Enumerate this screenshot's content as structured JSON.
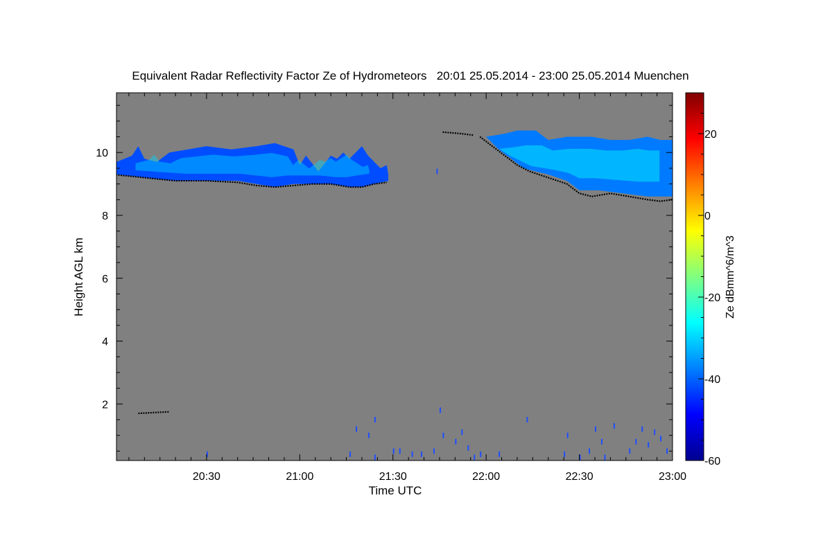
{
  "chart_data": {
    "type": "heatmap",
    "title": "Equivalent Radar Reflectivity Factor Ze of Hydrometeors   20:01 25.05.2014 - 23:00 25.05.2014 Muenchen",
    "xlabel": "Time UTC",
    "ylabel": "Height AGL km",
    "x_unit": "minutes after 20:00 UTC",
    "xlim": [
      1,
      180
    ],
    "ylim": [
      0.2,
      11.9
    ],
    "x_ticks": [
      {
        "v": 30,
        "label": "20:30"
      },
      {
        "v": 60,
        "label": "21:00"
      },
      {
        "v": 90,
        "label": "21:30"
      },
      {
        "v": 120,
        "label": "22:00"
      },
      {
        "v": 150,
        "label": "22:30"
      },
      {
        "v": 180,
        "label": "23:00"
      }
    ],
    "y_ticks": [
      {
        "v": 2,
        "label": "2"
      },
      {
        "v": 4,
        "label": "4"
      },
      {
        "v": 6,
        "label": "6"
      },
      {
        "v": 8,
        "label": "8"
      },
      {
        "v": 10,
        "label": "10"
      }
    ],
    "background_color": "#808080",
    "colorbar": {
      "label": "Ze dBmm^6/m^3",
      "range": [
        -60,
        30
      ],
      "ticks": [
        {
          "v": 20,
          "label": "20"
        },
        {
          "v": 0,
          "label": "0"
        },
        {
          "v": -20,
          "label": "-20"
        },
        {
          "v": -40,
          "label": "-40"
        },
        {
          "v": -60,
          "label": "-60"
        }
      ],
      "colormap": [
        "#00008f",
        "#0000ff",
        "#0080ff",
        "#00ffff",
        "#80ff80",
        "#ffff00",
        "#ff8000",
        "#ff0000",
        "#800000"
      ]
    },
    "cloud_layers": [
      {
        "name": "cirrus-layer-1",
        "ze_dbz": -42,
        "top": [
          [
            1,
            9.7
          ],
          [
            6,
            9.9
          ],
          [
            8,
            10.2
          ],
          [
            10,
            9.8
          ],
          [
            14,
            9.7
          ],
          [
            18,
            10.0
          ],
          [
            24,
            10.1
          ],
          [
            30,
            10.2
          ],
          [
            38,
            10.1
          ],
          [
            46,
            10.2
          ],
          [
            52,
            10.3
          ],
          [
            58,
            10.1
          ],
          [
            60,
            9.6
          ],
          [
            62,
            9.9
          ],
          [
            66,
            9.4
          ],
          [
            70,
            9.9
          ],
          [
            72,
            9.8
          ],
          [
            74,
            10.0
          ],
          [
            76,
            9.8
          ],
          [
            78,
            10.0
          ],
          [
            80,
            10.2
          ],
          [
            82,
            9.9
          ],
          [
            84,
            9.7
          ],
          [
            86,
            9.5
          ],
          [
            88,
            9.6
          ],
          [
            88.5,
            9.3
          ]
        ],
        "base": [
          [
            1,
            9.3
          ],
          [
            10,
            9.2
          ],
          [
            20,
            9.1
          ],
          [
            30,
            9.1
          ],
          [
            40,
            9.1
          ],
          [
            46,
            9.0
          ],
          [
            52,
            8.9
          ],
          [
            58,
            9.0
          ],
          [
            64,
            9.0
          ],
          [
            70,
            9.0
          ],
          [
            76,
            8.9
          ],
          [
            80,
            8.9
          ],
          [
            84,
            9.0
          ],
          [
            88.5,
            9.1
          ]
        ]
      },
      {
        "name": "cirrus-layer-2",
        "ze_dbz": -38,
        "top": [
          [
            120,
            10.5
          ],
          [
            126,
            10.6
          ],
          [
            130,
            10.7
          ],
          [
            136,
            10.7
          ],
          [
            140,
            10.4
          ],
          [
            146,
            10.5
          ],
          [
            154,
            10.5
          ],
          [
            160,
            10.4
          ],
          [
            166,
            10.4
          ],
          [
            172,
            10.5
          ],
          [
            176,
            10.4
          ],
          [
            180,
            10.4
          ]
        ],
        "base": [
          [
            120,
            10.5
          ],
          [
            124,
            10.1
          ],
          [
            128,
            9.8
          ],
          [
            132,
            9.5
          ],
          [
            140,
            9.3
          ],
          [
            146,
            9.1
          ],
          [
            150,
            8.8
          ],
          [
            156,
            8.8
          ],
          [
            164,
            8.7
          ],
          [
            172,
            8.6
          ],
          [
            180,
            8.6
          ]
        ]
      }
    ],
    "detection_lines": [
      [
        [
          0,
          9.3
        ],
        [
          10,
          9.2
        ],
        [
          20,
          9.1
        ],
        [
          30,
          9.1
        ],
        [
          40,
          9.05
        ],
        [
          46,
          8.95
        ],
        [
          52,
          8.9
        ],
        [
          58,
          8.95
        ],
        [
          64,
          9.0
        ],
        [
          70,
          9.0
        ],
        [
          76,
          8.9
        ],
        [
          80,
          8.9
        ],
        [
          84,
          9.0
        ],
        [
          88,
          9.05
        ]
      ],
      [
        [
          106,
          10.65
        ],
        [
          112,
          10.6
        ],
        [
          116,
          10.55
        ]
      ],
      [
        [
          118,
          10.5
        ],
        [
          122,
          10.2
        ],
        [
          126,
          9.9
        ],
        [
          130,
          9.6
        ],
        [
          134,
          9.4
        ],
        [
          140,
          9.2
        ],
        [
          146,
          9.0
        ],
        [
          150,
          8.7
        ],
        [
          154,
          8.6
        ],
        [
          160,
          8.7
        ],
        [
          166,
          8.6
        ],
        [
          172,
          8.5
        ],
        [
          176,
          8.45
        ],
        [
          180,
          8.5
        ]
      ],
      [
        [
          8,
          1.7
        ],
        [
          18,
          1.75
        ]
      ]
    ],
    "noise_pixels": [
      [
        76,
        0.4
      ],
      [
        78,
        1.2
      ],
      [
        82,
        1.0
      ],
      [
        84,
        1.5
      ],
      [
        84,
        0.3
      ],
      [
        90,
        0.5
      ],
      [
        92,
        0.5
      ],
      [
        96,
        0.4
      ],
      [
        99,
        0.4
      ],
      [
        103,
        0.5
      ],
      [
        106,
        1.0
      ],
      [
        110,
        0.8
      ],
      [
        112,
        1.1
      ],
      [
        114,
        0.6
      ],
      [
        116,
        0.3
      ],
      [
        118,
        0.4
      ],
      [
        124,
        0.4
      ],
      [
        133,
        1.5
      ],
      [
        145,
        0.4
      ],
      [
        146,
        1.0
      ],
      [
        150,
        0.3
      ],
      [
        153,
        0.5
      ],
      [
        155,
        1.2
      ],
      [
        157,
        0.8
      ],
      [
        158,
        0.3
      ],
      [
        161,
        1.3
      ],
      [
        166,
        0.5
      ],
      [
        168,
        0.8
      ],
      [
        170,
        1.2
      ],
      [
        172,
        0.7
      ],
      [
        174,
        1.1
      ],
      [
        176,
        0.9
      ],
      [
        178,
        0.5
      ],
      [
        180,
        0.4
      ],
      [
        30,
        0.4
      ],
      [
        105,
        1.8
      ],
      [
        104,
        9.4
      ]
    ]
  }
}
